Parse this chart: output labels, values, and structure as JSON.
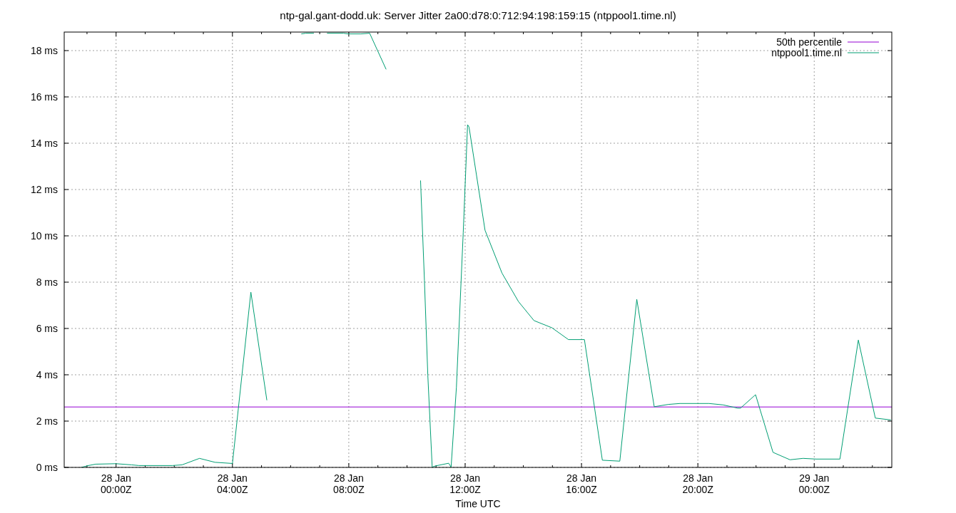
{
  "chart_data": {
    "type": "line",
    "title": "ntp-gal.gant-dodd.uk: Server Jitter 2a00:d78:0:712:94:198:159:15 (ntppool1.time.nl)",
    "xlabel": "Time UTC",
    "xlim": [
      "--01-27T22:13",
      "--01-29T02:40"
    ],
    "ylim": [
      0,
      18.8
    ],
    "yticks": [
      {
        "value": 0,
        "label": "0 ms"
      },
      {
        "value": 2,
        "label": "2 ms"
      },
      {
        "value": 4,
        "label": "4 ms"
      },
      {
        "value": 6,
        "label": "6 ms"
      },
      {
        "value": 8,
        "label": "8 ms"
      },
      {
        "value": 10,
        "label": "10 ms"
      },
      {
        "value": 12,
        "label": "12 ms"
      },
      {
        "value": 14,
        "label": "14 ms"
      },
      {
        "value": 16,
        "label": "16 ms"
      },
      {
        "value": 18,
        "label": "18 ms"
      }
    ],
    "xticks": [
      {
        "value": "--01-27T23:00",
        "label": null
      },
      {
        "value": "--01-28T00:00",
        "label": "28 Jan\n00:00Z"
      },
      {
        "value": "--01-28T01:00",
        "label": null
      },
      {
        "value": "--01-28T02:00",
        "label": null
      },
      {
        "value": "--01-28T03:00",
        "label": null
      },
      {
        "value": "--01-28T04:00",
        "label": "28 Jan\n04:00Z"
      },
      {
        "value": "--01-28T05:00",
        "label": null
      },
      {
        "value": "--01-28T06:00",
        "label": null
      },
      {
        "value": "--01-28T07:00",
        "label": null
      },
      {
        "value": "--01-28T08:00",
        "label": "28 Jan\n08:00Z"
      },
      {
        "value": "--01-28T09:00",
        "label": null
      },
      {
        "value": "--01-28T10:00",
        "label": null
      },
      {
        "value": "--01-28T11:00",
        "label": null
      },
      {
        "value": "--01-28T12:00",
        "label": "28 Jan\n12:00Z"
      },
      {
        "value": "--01-28T13:00",
        "label": null
      },
      {
        "value": "--01-28T14:00",
        "label": null
      },
      {
        "value": "--01-28T15:00",
        "label": null
      },
      {
        "value": "--01-28T16:00",
        "label": "28 Jan\n16:00Z"
      },
      {
        "value": "--01-28T17:00",
        "label": null
      },
      {
        "value": "--01-28T18:00",
        "label": null
      },
      {
        "value": "--01-28T19:00",
        "label": null
      },
      {
        "value": "--01-28T20:00",
        "label": "28 Jan\n20:00Z"
      },
      {
        "value": "--01-28T21:00",
        "label": null
      },
      {
        "value": "--01-28T22:00",
        "label": null
      },
      {
        "value": "--01-28T23:00",
        "label": null
      },
      {
        "value": "--01-29T00:00",
        "label": "29 Jan\n00:00Z"
      },
      {
        "value": "--01-29T01:00",
        "label": null
      },
      {
        "value": "--01-29T02:00",
        "label": null
      }
    ],
    "grid": true,
    "legend": "top right",
    "line_style": "solid",
    "marker": "none",
    "series": [
      {
        "name": "50th percentile",
        "color": "#9400d3",
        "x": [
          "--01-27T22:13",
          "--01-29T02:40"
        ],
        "values": [
          2.61,
          2.61
        ]
      },
      {
        "name": "ntppool1.time.nl",
        "color": "#009e73",
        "x": [
          "--01-27T22:48",
          "--01-27T23:03",
          "--01-27T23:18",
          "--01-28T00:00",
          "--01-28T00:32",
          "--01-28T00:47",
          "--01-28T01:56",
          "--01-28T02:16",
          "--01-28T02:52",
          "--01-28T03:24",
          "--01-28T04:00",
          "--01-28T04:38",
          "--01-28T05:11",
          "--01-28T05:30",
          "--01-28T06:22",
          "--01-28T06:31",
          "--01-28T06:48",
          "--01-28T07:00",
          "--01-28T07:15",
          "--01-28T07:49",
          "--01-28T07:59",
          "--01-28T08:25",
          "--01-28T08:43",
          "--01-28T09:17",
          "--01-28T09:36",
          "--01-28T10:28",
          "--01-28T10:36",
          "--01-28T10:43",
          "--01-28T10:52",
          "--01-28T10:58",
          "--01-28T11:26",
          "--01-28T11:31",
          "--01-28T11:42",
          "--01-28T11:56",
          "--01-28T12:05",
          "--01-28T12:08",
          "--01-28T12:41",
          "--01-28T13:16",
          "--01-28T13:50",
          "--01-28T14:22",
          "--01-28T14:59",
          "--01-28T15:33",
          "--01-28T16:06",
          "--01-28T16:43",
          "--01-28T17:19",
          "--01-28T17:54",
          "--01-28T18:30",
          "--01-28T18:59",
          "--01-28T19:23",
          "--01-28T20:23",
          "--01-28T20:52",
          "--01-28T21:22",
          "--01-28T21:28",
          "--01-28T21:59",
          "--01-28T22:35",
          "--01-28T23:10",
          "--01-28T23:37",
          "--01-29T00:04",
          "--01-29T00:53",
          "--01-29T01:31",
          "--01-29T02:06",
          "--01-29T02:38"
        ],
        "values": [
          0,
          0.08,
          0.14,
          0.16,
          0.11,
          0.08,
          0.08,
          0.11,
          0.39,
          0.22,
          0.17,
          7.57,
          2.9,
          null,
          18.72,
          18.75,
          18.75,
          null,
          18.75,
          18.75,
          18.72,
          18.72,
          18.75,
          17.19,
          null,
          12.39,
          8.08,
          3.98,
          0.01,
          0.06,
          0.18,
          0.01,
          3.47,
          10.13,
          14.8,
          14.7,
          10.24,
          8.39,
          7.16,
          6.34,
          6.03,
          5.52,
          5.52,
          0.31,
          0.27,
          7.26,
          2.62,
          2.72,
          2.76,
          2.76,
          2.7,
          2.56,
          2.56,
          3.14,
          0.65,
          0.33,
          0.39,
          0.36,
          0.36,
          5.5,
          2.13,
          2.05
        ]
      }
    ]
  }
}
